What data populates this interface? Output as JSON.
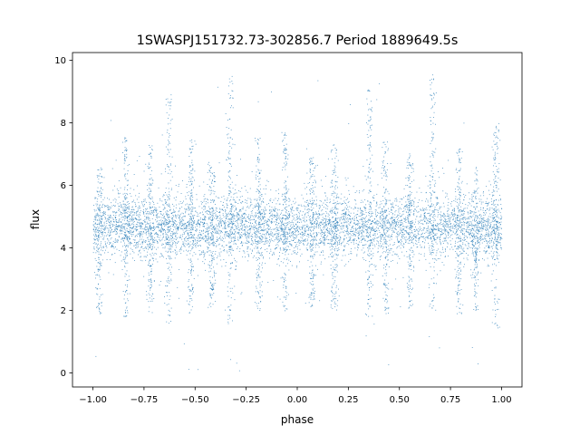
{
  "chart_data": {
    "type": "scatter",
    "title": "1SWASPJ151732.73-302856.7 Period 1889649.5s",
    "xlabel": "phase",
    "ylabel": "flux",
    "xlim": [
      -1.1,
      1.1
    ],
    "ylim": [
      -0.45,
      10.25
    ],
    "xticks": [
      -1.0,
      -0.75,
      -0.5,
      -0.25,
      0.0,
      0.25,
      0.5,
      0.75,
      1.0
    ],
    "xtick_labels": [
      "−1.00",
      "−0.75",
      "−0.50",
      "−0.25",
      "0.00",
      "0.25",
      "0.50",
      "0.75",
      "1.00"
    ],
    "yticks": [
      0,
      2,
      4,
      6,
      8,
      10
    ],
    "ytick_labels": [
      "0",
      "2",
      "4",
      "6",
      "8",
      "10"
    ],
    "grid": false,
    "point_color": "#1f77b4",
    "series_summary": {
      "x_range": [
        -1.0,
        1.0
      ],
      "core_flux_range": [
        3.5,
        5.8
      ],
      "typical_flux": 4.7,
      "min_flux": 0.0,
      "max_flux": 9.7,
      "note": "dense light curve of several thousand points plotted twice over phase -1 to 1"
    },
    "spikes": [
      {
        "phase": -0.97,
        "low": 1.9,
        "high": 6.6
      },
      {
        "phase": -0.84,
        "low": 1.8,
        "high": 7.6
      },
      {
        "phase": -0.72,
        "low": 1.9,
        "high": 7.3
      },
      {
        "phase": -0.63,
        "low": 1.6,
        "high": 9.0
      },
      {
        "phase": -0.52,
        "low": 1.9,
        "high": 7.5
      },
      {
        "phase": -0.42,
        "low": 2.1,
        "high": 6.8
      },
      {
        "phase": -0.33,
        "low": 1.5,
        "high": 9.6
      },
      {
        "phase": -0.19,
        "low": 2.0,
        "high": 7.6
      },
      {
        "phase": -0.06,
        "low": 2.0,
        "high": 7.8
      },
      {
        "phase": 0.07,
        "low": 2.1,
        "high": 6.9
      },
      {
        "phase": 0.18,
        "low": 2.0,
        "high": 7.3
      },
      {
        "phase": 0.35,
        "low": 1.8,
        "high": 9.1
      },
      {
        "phase": 0.43,
        "low": 1.9,
        "high": 7.4
      },
      {
        "phase": 0.55,
        "low": 1.9,
        "high": 7.1
      },
      {
        "phase": 0.66,
        "low": 2.0,
        "high": 9.6
      },
      {
        "phase": 0.79,
        "low": 1.9,
        "high": 7.2
      },
      {
        "phase": 0.87,
        "low": 2.0,
        "high": 6.7
      },
      {
        "phase": 0.97,
        "low": 1.4,
        "high": 8.0
      }
    ]
  }
}
